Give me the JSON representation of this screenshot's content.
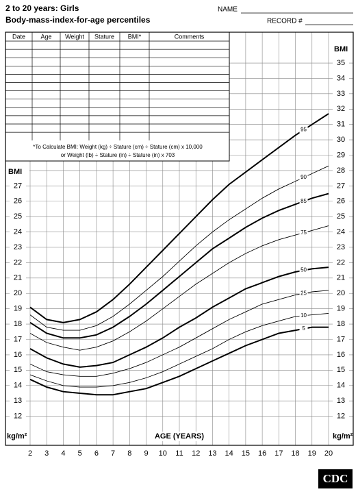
{
  "chart_data": {
    "type": "line",
    "title": "2 to 20 years: Girls",
    "subtitle": "Body-mass-index-for-age percentiles",
    "name_label": "NAME",
    "record_label": "RECORD #",
    "table_headers": [
      "Date",
      "Age",
      "Weight",
      "Stature",
      "BMI*",
      "Comments"
    ],
    "note": [
      "*To Calculate BMI: Weight (kg) ÷ Stature (cm) ÷ Stature (cm) x 10,000",
      "or Weight (lb) ÷ Stature (in) ÷ Stature (in) x 703"
    ],
    "ylabel": "BMI",
    "yunit": "kg/m²",
    "xlabel": "AGE (YEARS)",
    "logo": "CDC",
    "x": [
      2,
      3,
      4,
      5,
      6,
      7,
      8,
      9,
      10,
      11,
      12,
      13,
      14,
      15,
      16,
      17,
      18,
      19,
      20
    ],
    "xlim": [
      2,
      20
    ],
    "xticks": [
      2,
      3,
      4,
      5,
      6,
      7,
      8,
      9,
      10,
      11,
      12,
      13,
      14,
      15,
      16,
      17,
      18,
      19,
      20
    ],
    "ylim": [
      11,
      36
    ],
    "yticks": [
      12,
      13,
      14,
      15,
      16,
      17,
      18,
      19,
      20,
      21,
      22,
      23,
      24,
      25,
      26,
      27,
      28,
      29,
      30,
      31,
      32,
      33,
      34,
      35
    ],
    "grid": true,
    "series": [
      {
        "name": "95",
        "color": "#000",
        "line_width": 2,
        "values": [
          19.1,
          18.3,
          18.1,
          18.3,
          18.8,
          19.6,
          20.6,
          21.7,
          22.8,
          23.9,
          25.0,
          26.1,
          27.1,
          27.9,
          28.7,
          29.5,
          30.3,
          31.0,
          31.7
        ]
      },
      {
        "name": "90",
        "color": "#000",
        "line_width": 0.9,
        "values": [
          18.6,
          17.8,
          17.6,
          17.6,
          17.9,
          18.5,
          19.3,
          20.2,
          21.1,
          22.1,
          23.1,
          24.0,
          24.8,
          25.5,
          26.2,
          26.8,
          27.3,
          27.8,
          28.3
        ]
      },
      {
        "name": "85",
        "color": "#000",
        "line_width": 2,
        "values": [
          18.1,
          17.4,
          17.1,
          17.1,
          17.3,
          17.8,
          18.5,
          19.3,
          20.2,
          21.1,
          22.0,
          22.9,
          23.6,
          24.3,
          24.9,
          25.4,
          25.8,
          26.2,
          26.5
        ]
      },
      {
        "name": "75",
        "color": "#000",
        "line_width": 0.9,
        "values": [
          17.4,
          16.8,
          16.5,
          16.3,
          16.5,
          16.9,
          17.5,
          18.2,
          19.0,
          19.8,
          20.6,
          21.3,
          22.0,
          22.6,
          23.1,
          23.5,
          23.8,
          24.1,
          24.4
        ]
      },
      {
        "name": "50",
        "color": "#000",
        "line_width": 2,
        "values": [
          16.4,
          15.8,
          15.4,
          15.2,
          15.3,
          15.5,
          16.0,
          16.5,
          17.1,
          17.8,
          18.4,
          19.1,
          19.7,
          20.3,
          20.7,
          21.1,
          21.4,
          21.6,
          21.7
        ]
      },
      {
        "name": "25",
        "color": "#000",
        "line_width": 0.9,
        "values": [
          15.4,
          14.9,
          14.7,
          14.6,
          14.6,
          14.8,
          15.1,
          15.5,
          16.0,
          16.5,
          17.1,
          17.7,
          18.3,
          18.8,
          19.3,
          19.6,
          19.9,
          20.1,
          20.2
        ]
      },
      {
        "name": "10",
        "color": "#000",
        "line_width": 0.9,
        "values": [
          14.7,
          14.3,
          14.0,
          13.9,
          13.9,
          14.0,
          14.2,
          14.5,
          14.9,
          15.4,
          15.9,
          16.4,
          17.0,
          17.5,
          17.9,
          18.2,
          18.5,
          18.6,
          18.7
        ]
      },
      {
        "name": "5",
        "color": "#000",
        "line_width": 2,
        "values": [
          14.4,
          13.9,
          13.6,
          13.5,
          13.4,
          13.4,
          13.6,
          13.8,
          14.2,
          14.6,
          15.1,
          15.6,
          16.1,
          16.6,
          17.0,
          17.4,
          17.6,
          17.8,
          17.8
        ]
      }
    ]
  }
}
